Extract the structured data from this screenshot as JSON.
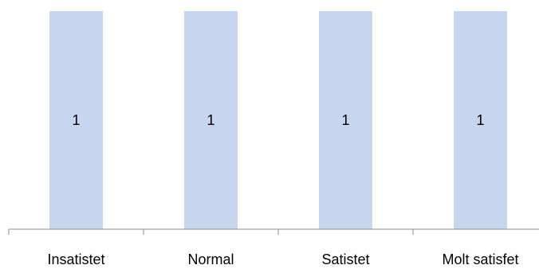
{
  "chart_data": {
    "type": "bar",
    "categories": [
      "Insatistet",
      "Normal",
      "Satistet",
      "Molt satisfet"
    ],
    "values": [
      1,
      1,
      1,
      1
    ],
    "data_labels": [
      "1",
      "1",
      "1",
      "1"
    ],
    "ylim": [
      0,
      1
    ],
    "grid": false,
    "legend": "none",
    "bar_color": "#C5D6EE",
    "axis_color": "#8C8C8C",
    "title": "",
    "xlabel": "",
    "ylabel": ""
  }
}
